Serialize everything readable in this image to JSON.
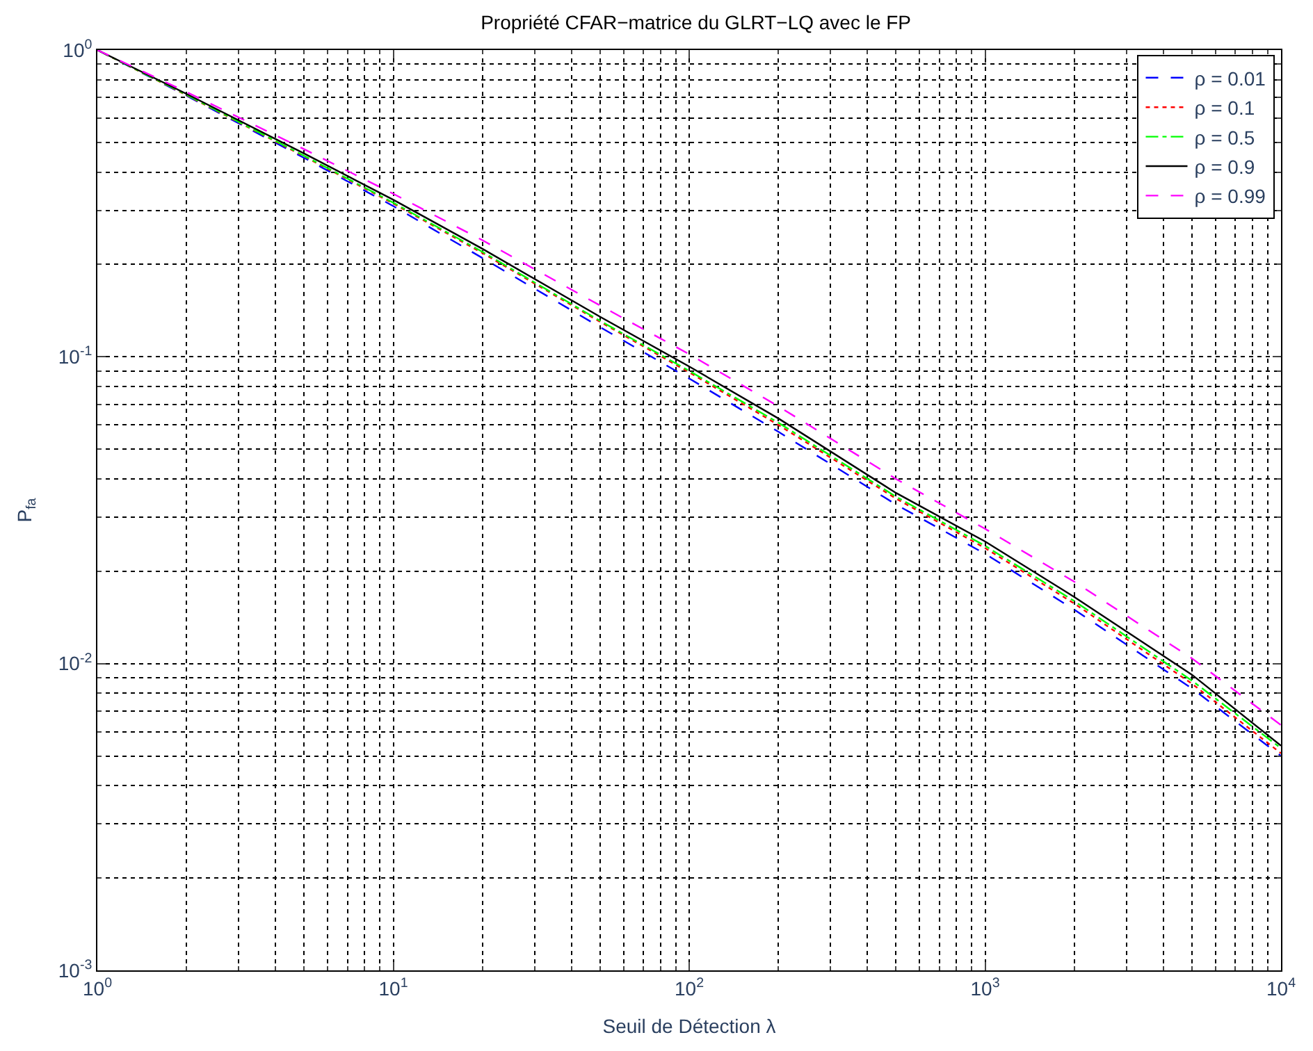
{
  "chart_data": {
    "type": "line",
    "title": "Propriété CFAR−matrice du GLRT−LQ avec le FP",
    "xlabel": "Seuil de Détection λ",
    "ylabel": "P$_{fa}$",
    "x": [
      1,
      2,
      5,
      10,
      20,
      50,
      100,
      200,
      500,
      1000,
      2000,
      5000,
      10000
    ],
    "series": [
      {
        "name": "ρ = 0.01",
        "color": "#0000ff",
        "line_style": "dashed",
        "values": [
          1,
          0.71,
          0.445,
          0.31,
          0.21,
          0.125,
          0.085,
          0.057,
          0.033,
          0.0228,
          0.015,
          0.0083,
          0.005
        ]
      },
      {
        "name": "ρ = 0.1",
        "color": "#ff0000",
        "line_style": "dotted",
        "values": [
          1,
          0.713,
          0.45,
          0.316,
          0.218,
          0.13,
          0.089,
          0.06,
          0.0345,
          0.0238,
          0.0157,
          0.0086,
          0.0051
        ]
      },
      {
        "name": "ρ = 0.5",
        "color": "#00ff00",
        "line_style": "dashdot",
        "values": [
          1,
          0.715,
          0.452,
          0.318,
          0.22,
          0.131,
          0.09,
          0.061,
          0.035,
          0.0242,
          0.016,
          0.0088,
          0.0053
        ]
      },
      {
        "name": "ρ = 0.9",
        "color": "#000000",
        "line_style": "solid",
        "values": [
          1,
          0.72,
          0.46,
          0.325,
          0.225,
          0.135,
          0.093,
          0.063,
          0.036,
          0.025,
          0.0165,
          0.0092,
          0.0054
        ]
      },
      {
        "name": "ρ = 0.99",
        "color": "#ff00ff",
        "line_style": "dashed",
        "values": [
          1,
          0.73,
          0.475,
          0.34,
          0.24,
          0.147,
          0.102,
          0.069,
          0.04,
          0.0275,
          0.0185,
          0.0104,
          0.0063
        ]
      }
    ],
    "log": "xy",
    "xlim": [
      1,
      10000
    ],
    "ylim": [
      0.001,
      1
    ],
    "xticks": [
      {
        "value": 1,
        "label": "10$^{0}$"
      },
      {
        "value": 10,
        "label": "10$^{1}$"
      },
      {
        "value": 100,
        "label": "10$^{2}$"
      },
      {
        "value": 1000,
        "label": "10$^{3}$"
      },
      {
        "value": 10000,
        "label": "10$^{4}$"
      }
    ],
    "yticks": [
      {
        "value": 0.001,
        "label": "10$^{-3}$"
      },
      {
        "value": 0.01,
        "label": "10$^{-2}$"
      },
      {
        "value": 0.1,
        "label": "10$^{-1}$"
      },
      {
        "value": 1,
        "label": "10$^{0}$"
      }
    ],
    "grid": true,
    "legend": "top right"
  }
}
